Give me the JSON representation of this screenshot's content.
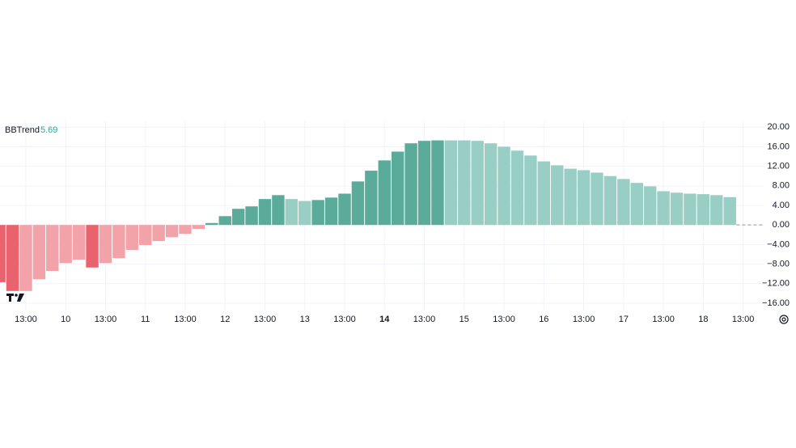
{
  "chart_data": {
    "type": "bar",
    "series": [
      {
        "name": "BBTrend",
        "values": [
          -11.7,
          -13.5,
          -13.5,
          -11.1,
          -9.4,
          -7.8,
          -7.1,
          -8.7,
          -7.8,
          -6.8,
          -5.1,
          -4.1,
          -3.3,
          -2.5,
          -1.8,
          -0.8,
          0.4,
          1.8,
          3.3,
          3.8,
          5.3,
          6.1,
          5.3,
          4.9,
          5.1,
          5.6,
          6.4,
          8.9,
          11.1,
          13.2,
          15.0,
          16.7,
          17.2,
          17.3,
          17.3,
          17.3,
          17.2,
          16.7,
          16.0,
          15.2,
          14.2,
          13.0,
          12.2,
          11.5,
          11.2,
          10.7,
          10.0,
          9.4,
          8.6,
          7.9,
          6.9,
          6.6,
          6.4,
          6.3,
          6.1,
          5.69,
          null
        ],
        "colors": [
          "#e8636e",
          "#e8636e",
          "#f2a3a9",
          "#f2a3a9",
          "#f2a3a9",
          "#f2a3a9",
          "#f2a3a9",
          "#e8636e",
          "#f2a3a9",
          "#f2a3a9",
          "#f2a3a9",
          "#f2a3a9",
          "#f2a3a9",
          "#f2a3a9",
          "#f2a3a9",
          "#f2a3a9",
          "#5aab99",
          "#5aab99",
          "#5aab99",
          "#5aab99",
          "#5aab99",
          "#5aab99",
          "#98cec3",
          "#98cec3",
          "#5aab99",
          "#5aab99",
          "#5aab99",
          "#5aab99",
          "#5aab99",
          "#5aab99",
          "#5aab99",
          "#5aab99",
          "#5aab99",
          "#5aab99",
          "#98cec3",
          "#98cec3",
          "#98cec3",
          "#98cec3",
          "#98cec3",
          "#98cec3",
          "#98cec3",
          "#98cec3",
          "#98cec3",
          "#98cec3",
          "#98cec3",
          "#98cec3",
          "#98cec3",
          "#98cec3",
          "#98cec3",
          "#98cec3",
          "#98cec3",
          "#98cec3",
          "#98cec3",
          "#98cec3",
          "#98cec3",
          "#98cec3",
          null
        ]
      }
    ],
    "last_value": 5.69,
    "last_value_color": "#22ab94",
    "categories": [
      null,
      null,
      "13:00",
      null,
      null,
      "10",
      null,
      null,
      "13:00",
      null,
      null,
      "11",
      null,
      null,
      "13:00",
      null,
      null,
      "12",
      null,
      null,
      "13:00",
      null,
      null,
      "13",
      null,
      null,
      "13:00",
      null,
      null,
      "14",
      null,
      null,
      "13:00",
      null,
      null,
      "15",
      null,
      null,
      "13:00",
      null,
      null,
      "16",
      null,
      null,
      "13:00",
      null,
      null,
      "17",
      null,
      null,
      "13:00",
      null,
      null,
      "18",
      null,
      null,
      "13:00"
    ],
    "ylim": [
      -17.5,
      21.2
    ],
    "yticks": [
      {
        "value": 20,
        "label": "20.00"
      },
      {
        "value": 16,
        "label": "16.00"
      },
      {
        "value": 12,
        "label": "12.00"
      },
      {
        "value": 8,
        "label": "8.00"
      },
      {
        "value": 4,
        "label": "4.00"
      },
      {
        "value": 0,
        "label": "0.00"
      },
      {
        "value": -4,
        "label": "−4.00"
      },
      {
        "value": -8,
        "label": "−8.00"
      },
      {
        "value": -12,
        "label": "−12.00"
      },
      {
        "value": -16,
        "label": "−16.00"
      }
    ],
    "grid": true
  }
}
